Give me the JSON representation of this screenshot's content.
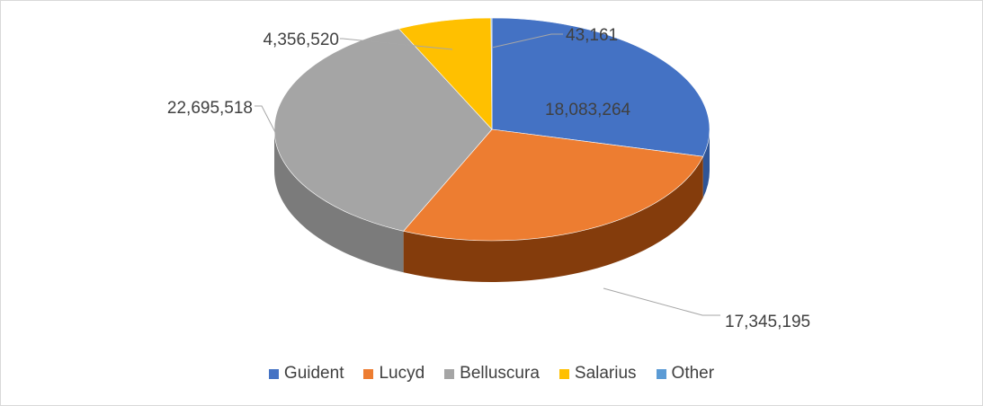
{
  "chart_data": {
    "type": "pie",
    "style": "3d",
    "title": "",
    "categories": [
      "Guident",
      "Lucyd",
      "Belluscura",
      "Salarius",
      "Other"
    ],
    "values": [
      18083264,
      17345195,
      22695518,
      4356520,
      43161
    ],
    "labels": [
      "18,083,264",
      "17,345,195",
      "22,695,518",
      "4,356,520",
      "43,161"
    ],
    "colors": [
      "#4472c4",
      "#ed7d31",
      "#a5a5a5",
      "#ffc000",
      "#5b9bd5"
    ],
    "side_colors": [
      "#2f5597",
      "#843c0c",
      "#7b7b7b",
      "#bf9000",
      "#2e75b6"
    ],
    "legend_position": "bottom"
  }
}
